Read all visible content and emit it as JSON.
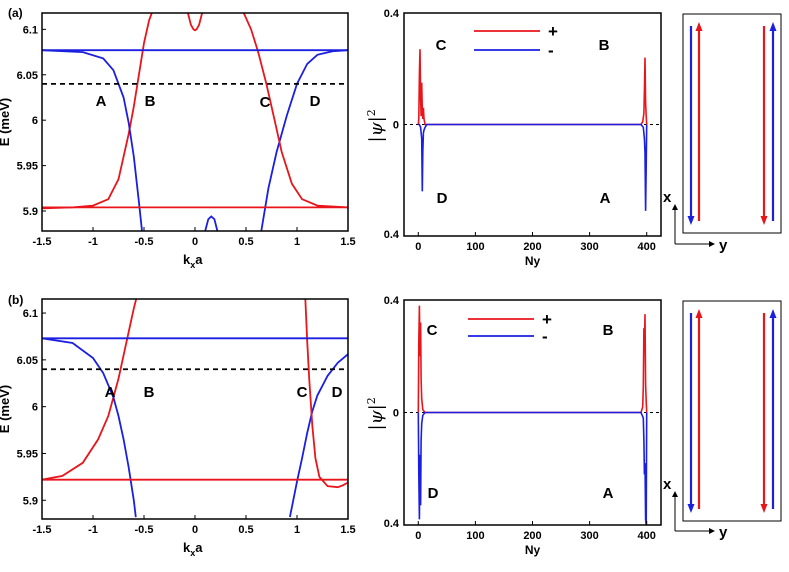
{
  "figure": {
    "colors": {
      "plus": "#e8151b",
      "minus": "#1a1fe0",
      "axis": "#000000",
      "fermi": "#000000"
    }
  },
  "chart_data": [
    {
      "panel": "(a)",
      "type": "line",
      "title": "",
      "xlabel": "kxa",
      "ylabel": "E (meV)",
      "xlim": [
        -1.5,
        1.5
      ],
      "ylim": [
        5.878,
        6.118
      ],
      "x_ticks": [
        "-1.5",
        "-1",
        "-0.5",
        "0",
        "0.5",
        "1",
        "1.5"
      ],
      "y_ticks": [
        "6.1",
        "6.05",
        "6",
        "5.95",
        "5.9"
      ],
      "fermi_level": 6.04,
      "point_labels": [
        "A",
        "B",
        "C",
        "D"
      ],
      "series": [
        {
          "color": "red",
          "x": [
            -1.5,
            -1.2,
            -1.0,
            -0.85,
            -0.75,
            -0.65,
            -0.6,
            -0.55,
            -0.5,
            -0.45,
            -0.4
          ],
          "y": [
            5.903,
            5.904,
            5.906,
            5.913,
            5.935,
            5.985,
            6.015,
            6.05,
            6.085,
            6.11,
            6.125
          ]
        },
        {
          "color": "blue",
          "x": [
            -1.5,
            -1.1,
            -0.9,
            -0.8,
            -0.7,
            -0.65,
            -0.6,
            -0.55,
            -0.52
          ],
          "y": [
            6.077,
            6.075,
            6.068,
            6.055,
            6.025,
            5.997,
            5.96,
            5.91,
            5.878
          ]
        },
        {
          "color": "blue",
          "x": [
            0.65,
            0.72,
            0.8,
            0.9,
            1.0,
            1.1,
            1.2,
            1.35,
            1.5
          ],
          "y": [
            5.878,
            5.925,
            5.965,
            6.005,
            6.04,
            6.062,
            6.072,
            6.076,
            6.077
          ]
        },
        {
          "color": "red",
          "x": [
            0.45,
            0.55,
            0.62,
            0.7,
            0.78,
            0.85,
            0.95,
            1.05,
            1.2,
            1.5
          ],
          "y": [
            6.125,
            6.1,
            6.075,
            6.04,
            6.0,
            5.965,
            5.93,
            5.913,
            5.906,
            5.904
          ]
        },
        {
          "color": "red",
          "x": [
            -0.07,
            -0.04,
            -0.015,
            0.0,
            0.015,
            0.04,
            0.07
          ],
          "y": [
            6.118,
            6.105,
            6.1,
            6.099,
            6.1,
            6.105,
            6.118
          ]
        },
        {
          "color": "blue",
          "x": [
            0.1,
            0.13,
            0.16,
            0.19,
            0.22
          ],
          "y": [
            5.878,
            5.891,
            5.894,
            5.891,
            5.878
          ]
        },
        {
          "color": "red",
          "x": [
            -1.5,
            1.5
          ],
          "y": [
            5.904,
            5.904
          ]
        },
        {
          "color": "blue",
          "x": [
            -1.5,
            1.5
          ],
          "y": [
            6.077,
            6.077
          ]
        }
      ]
    },
    {
      "panel": "(a)",
      "type": "line",
      "title": "",
      "xlabel": "Ny",
      "ylabel": "|ψ|2",
      "xlim": [
        -25,
        425
      ],
      "ylim": [
        -0.4,
        0.4
      ],
      "x_ticks": [
        "0",
        "100",
        "200",
        "300",
        "400"
      ],
      "y_ticks": [
        "0.4",
        "0",
        "0.4"
      ],
      "legend": [
        "+",
        "-"
      ],
      "legend_position": "top-center",
      "point_labels": [
        "C",
        "B",
        "D",
        "A"
      ],
      "series": [
        {
          "name": "+",
          "x": [
            0,
            1,
            2,
            3,
            4,
            5,
            6,
            7,
            8,
            9,
            10,
            12,
            15,
            390,
            393,
            395,
            396,
            397,
            398,
            399,
            400
          ],
          "y": [
            0,
            0.02,
            0.18,
            0.27,
            0.1,
            0.03,
            0.15,
            0.05,
            0.02,
            0.06,
            0.02,
            0,
            0,
            0,
            0.01,
            0.04,
            0.12,
            0.24,
            0.08,
            0.03,
            0
          ]
        },
        {
          "name": "-",
          "x": [
            0,
            2,
            4,
            6,
            7,
            8,
            9,
            10,
            12,
            15,
            390,
            394,
            396,
            397,
            398,
            399,
            400
          ],
          "y": [
            0,
            0,
            -0.01,
            -0.05,
            -0.24,
            -0.1,
            -0.03,
            -0.02,
            -0.01,
            0,
            0,
            -0.01,
            -0.05,
            -0.1,
            -0.31,
            -0.15,
            0
          ]
        }
      ]
    },
    {
      "panel": "(b)",
      "type": "line",
      "title": "",
      "xlabel": "kxa",
      "ylabel": "E (meV)",
      "xlim": [
        -1.5,
        1.5
      ],
      "ylim": [
        5.88,
        6.115
      ],
      "x_ticks": [
        "-1.5",
        "-1",
        "-0.5",
        "0",
        "0.5",
        "1",
        "1.5"
      ],
      "y_ticks": [
        "6.1",
        "6.05",
        "6",
        "5.95",
        "5.9"
      ],
      "fermi_level": 6.04,
      "point_labels": [
        "A",
        "B",
        "C",
        "D"
      ],
      "series": [
        {
          "color": "red",
          "x": [
            -1.5,
            -1.3,
            -1.1,
            -0.95,
            -0.85,
            -0.75,
            -0.7,
            -0.65,
            -0.6,
            -0.57
          ],
          "y": [
            5.922,
            5.926,
            5.94,
            5.965,
            5.99,
            6.03,
            6.055,
            6.08,
            6.105,
            6.118
          ]
        },
        {
          "color": "blue",
          "x": [
            -1.5,
            -1.2,
            -1.0,
            -0.9,
            -0.8,
            -0.75,
            -0.7,
            -0.65,
            -0.6,
            -0.58
          ],
          "y": [
            6.073,
            6.068,
            6.052,
            6.036,
            6.01,
            5.99,
            5.965,
            5.935,
            5.9,
            5.882
          ]
        },
        {
          "color": "blue",
          "x": [
            0.93,
            1.0,
            1.05,
            1.1,
            1.15,
            1.2,
            1.3,
            1.4,
            1.5
          ],
          "y": [
            5.882,
            5.92,
            5.945,
            5.972,
            5.995,
            6.012,
            6.033,
            6.047,
            6.056
          ]
        },
        {
          "color": "red",
          "x": [
            1.08,
            1.1,
            1.12,
            1.15,
            1.18,
            1.22,
            1.3,
            1.4,
            1.45,
            1.5
          ],
          "y": [
            6.118,
            6.07,
            6.03,
            5.98,
            5.945,
            5.925,
            5.915,
            5.914,
            5.916,
            5.919
          ]
        },
        {
          "color": "red",
          "x": [
            -1.5,
            1.5
          ],
          "y": [
            5.922,
            5.922
          ]
        },
        {
          "color": "blue",
          "x": [
            -1.5,
            1.5
          ],
          "y": [
            6.073,
            6.073
          ]
        }
      ]
    },
    {
      "panel": "(b)",
      "type": "line",
      "title": "",
      "xlabel": "Ny",
      "ylabel": "|ψ|2",
      "xlim": [
        -25,
        425
      ],
      "ylim": [
        -0.4,
        0.4
      ],
      "x_ticks": [
        "0",
        "100",
        "200",
        "300",
        "400"
      ],
      "y_ticks": [
        "0.4",
        "0",
        "0.4"
      ],
      "legend": [
        "+",
        "-"
      ],
      "legend_position": "top-center",
      "point_labels": [
        "C",
        "B",
        "D",
        "A"
      ],
      "series": [
        {
          "name": "+",
          "x": [
            0,
            1,
            2,
            3,
            4,
            5,
            6,
            8,
            12,
            390,
            393,
            394,
            395,
            396,
            397,
            398,
            399,
            400
          ],
          "y": [
            0,
            0.25,
            0.38,
            0.2,
            0.32,
            0.12,
            0.05,
            0.01,
            0,
            0,
            0.02,
            0.09,
            0.3,
            0.22,
            0.35,
            0.1,
            0.04,
            0
          ]
        },
        {
          "name": "-",
          "x": [
            0,
            1,
            2,
            3,
            4,
            5,
            6,
            8,
            12,
            390,
            394,
            395,
            396,
            397,
            398,
            399,
            400
          ],
          "y": [
            0,
            -0.22,
            -0.38,
            -0.15,
            -0.33,
            -0.1,
            -0.04,
            -0.01,
            0,
            0,
            -0.02,
            -0.1,
            -0.22,
            -0.18,
            -0.38,
            -0.4,
            0
          ]
        }
      ]
    }
  ],
  "schematic": {
    "x_label": "x",
    "y_label": "y"
  }
}
